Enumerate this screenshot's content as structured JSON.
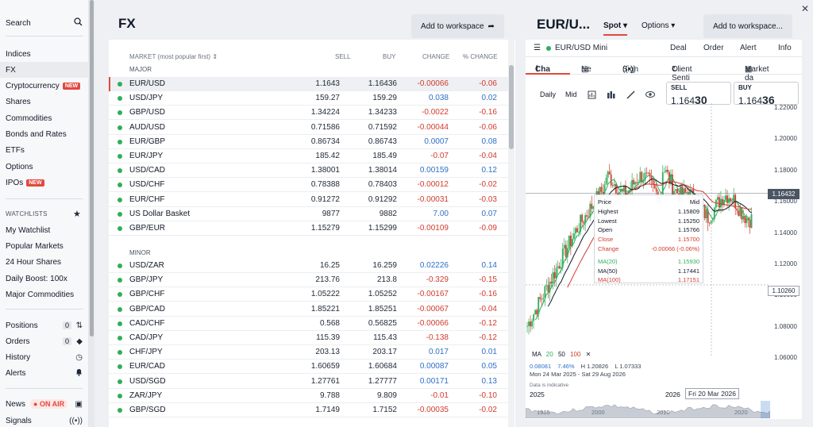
{
  "sidebar": {
    "search": "Search",
    "nav": [
      {
        "label": "Indices"
      },
      {
        "label": "FX"
      },
      {
        "label": "Cryptocurrency",
        "badge": "NEW"
      },
      {
        "label": "Shares"
      },
      {
        "label": "Commodities"
      },
      {
        "label": "Bonds and Rates"
      },
      {
        "label": "ETFs"
      },
      {
        "label": "Options"
      },
      {
        "label": "IPOs",
        "badge": "NEW"
      }
    ],
    "watchlists_heading": "WATCHLISTS",
    "watchlists": [
      "My Watchlist",
      "Popular Markets",
      "24 Hour Shares",
      "Daily Boost: 100x",
      "Major Commodities"
    ],
    "account": [
      {
        "label": "Positions",
        "count": "0"
      },
      {
        "label": "Orders",
        "count": "0"
      },
      {
        "label": "History"
      },
      {
        "label": "Alerts"
      }
    ],
    "news": "News",
    "on_air": "ON AIR",
    "signals": "Signals"
  },
  "fx": {
    "title": "FX",
    "add_workspace": "Add to workspace",
    "columns": {
      "market": "MARKET (most popular first)",
      "sell": "SELL",
      "buy": "BUY",
      "change": "CHANGE",
      "pct": "% CHANGE"
    },
    "major_label": "MAJOR",
    "minor_label": "MINOR",
    "major": [
      {
        "name": "EUR/USD",
        "sell": "1.1643",
        "buy": "1.16436",
        "change": "-0.00066",
        "pct": "-0.06"
      },
      {
        "name": "USD/JPY",
        "sell": "159.27",
        "buy": "159.29",
        "change": "0.038",
        "pct": "0.02"
      },
      {
        "name": "GBP/USD",
        "sell": "1.34224",
        "buy": "1.34233",
        "change": "-0.0022",
        "pct": "-0.16"
      },
      {
        "name": "AUD/USD",
        "sell": "0.71586",
        "buy": "0.71592",
        "change": "-0.00044",
        "pct": "-0.06"
      },
      {
        "name": "EUR/GBP",
        "sell": "0.86734",
        "buy": "0.86743",
        "change": "0.0007",
        "pct": "0.08"
      },
      {
        "name": "EUR/JPY",
        "sell": "185.42",
        "buy": "185.49",
        "change": "-0.07",
        "pct": "-0.04"
      },
      {
        "name": "USD/CAD",
        "sell": "1.38001",
        "buy": "1.38014",
        "change": "0.00159",
        "pct": "0.12"
      },
      {
        "name": "USD/CHF",
        "sell": "0.78388",
        "buy": "0.78403",
        "change": "-0.00012",
        "pct": "-0.02"
      },
      {
        "name": "EUR/CHF",
        "sell": "0.91272",
        "buy": "0.91292",
        "change": "-0.00031",
        "pct": "-0.03"
      },
      {
        "name": "US Dollar Basket",
        "sell": "9877",
        "buy": "9882",
        "change": "7.00",
        "pct": "0.07"
      },
      {
        "name": "GBP/EUR",
        "sell": "1.15279",
        "buy": "1.15299",
        "change": "-0.00109",
        "pct": "-0.09"
      }
    ],
    "minor": [
      {
        "name": "USD/ZAR",
        "sell": "16.25",
        "buy": "16.259",
        "change": "0.02226",
        "pct": "0.14"
      },
      {
        "name": "GBP/JPY",
        "sell": "213.76",
        "buy": "213.8",
        "change": "-0.329",
        "pct": "-0.15"
      },
      {
        "name": "GBP/CHF",
        "sell": "1.05222",
        "buy": "1.05252",
        "change": "-0.00167",
        "pct": "-0.16"
      },
      {
        "name": "GBP/CAD",
        "sell": "1.85221",
        "buy": "1.85251",
        "change": "-0.00067",
        "pct": "-0.04"
      },
      {
        "name": "CAD/CHF",
        "sell": "0.568",
        "buy": "0.56825",
        "change": "-0.00066",
        "pct": "-0.12"
      },
      {
        "name": "CAD/JPY",
        "sell": "115.39",
        "buy": "115.43",
        "change": "-0.138",
        "pct": "-0.12"
      },
      {
        "name": "CHF/JPY",
        "sell": "203.13",
        "buy": "203.17",
        "change": "0.017",
        "pct": "0.01"
      },
      {
        "name": "EUR/CAD",
        "sell": "1.60659",
        "buy": "1.60684",
        "change": "0.00087",
        "pct": "0.05"
      },
      {
        "name": "USD/SGD",
        "sell": "1.27761",
        "buy": "1.27777",
        "change": "0.00171",
        "pct": "0.13"
      },
      {
        "name": "ZAR/JPY",
        "sell": "9.788",
        "buy": "9.809",
        "change": "-0.01",
        "pct": "-0.10"
      },
      {
        "name": "GBP/SGD",
        "sell": "1.7149",
        "buy": "1.7152",
        "change": "-0.00035",
        "pct": "-0.02"
      }
    ]
  },
  "chart": {
    "title": "EUR/U...",
    "spot_tab": "Spot",
    "options_tab": "Options",
    "add_workspace": "Add to workspace...",
    "instrument": "EUR/USD Mini",
    "actions": [
      "Deal",
      "Order",
      "Alert",
      "Info"
    ],
    "subtabs": [
      "Cha",
      "Ne",
      "Sign",
      "Client Senti",
      "Market da"
    ],
    "toolbar": {
      "daily": "Daily",
      "mid": "Mid"
    },
    "sell_label": "SELL",
    "sell_main": "1.164",
    "sell_big": "30",
    "buy_label": "BUY",
    "buy_main": "1.164",
    "buy_big": "36",
    "y_ticks": [
      "1.22000",
      "1.20000",
      "1.18000",
      "1.16000",
      "1.14000",
      "1.12000",
      "1.10000",
      "1.08000",
      "1.06000"
    ],
    "current_price": "1.16432",
    "crosshair_price": "1.10260",
    "tooltip": [
      {
        "label": "Price",
        "value": "Mid",
        "color": "#111827"
      },
      {
        "label": "Highest",
        "value": "1.15809",
        "color": "#111827"
      },
      {
        "label": "Lowest",
        "value": "1.15250",
        "color": "#111827"
      },
      {
        "label": "Open",
        "value": "1.15766",
        "color": "#111827"
      },
      {
        "label": "Close",
        "value": "1.15700",
        "color": "#d23b2f"
      },
      {
        "label": "Change",
        "value": "-0.00066 (-0.06%)",
        "color": "#d23b2f"
      },
      {
        "label": "MA(20)",
        "value": "1.15930",
        "color": "#2fae5a"
      },
      {
        "label": "MA(50)",
        "value": "1.17441",
        "color": "#111827"
      },
      {
        "label": "MA(100)",
        "value": "1.17151",
        "color": "#d23b2f"
      }
    ],
    "ma_legend": {
      "ma": "MA",
      "ma20": "20",
      "ma50": "50",
      "ma100": "100"
    },
    "stats": {
      "change": "0.08081",
      "pct": "7.46%",
      "high": "H 1.20826",
      "low": "L 1.07333",
      "range": "Mon 24 Mar 2025 - Sat 29 Aug 2026"
    },
    "indicative": "Data is indicative",
    "x_left": "2025",
    "x_right": "2026",
    "x_crosshair": "Fri 20 Mar 2026",
    "nav_years": [
      "1985",
      "2000",
      "2010",
      "2020"
    ],
    "colors": {
      "ma20": "#2fae5a",
      "ma50": "#111827",
      "ma100": "#d23b2f",
      "up": "#2fae5a",
      "down": "#d23b2f"
    }
  }
}
